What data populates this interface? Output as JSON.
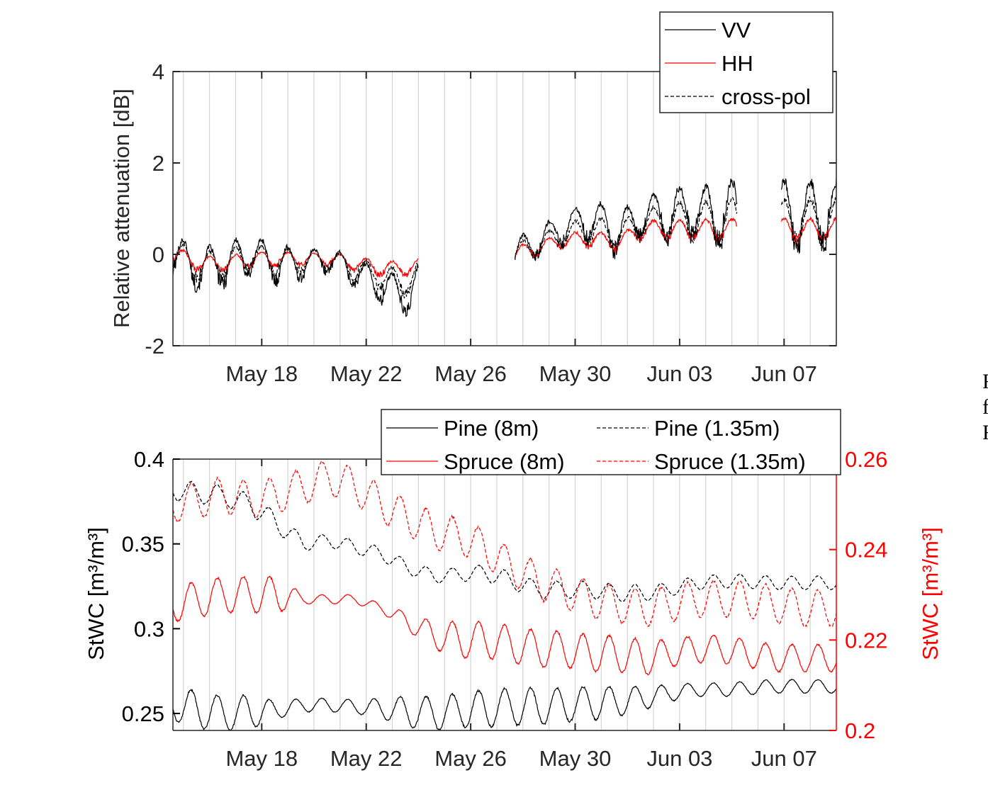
{
  "chart_data": [
    {
      "type": "line",
      "panel": "top",
      "title": "",
      "xlabel": "",
      "ylabel": "Relative attenuation [dB]",
      "ylim": [
        -2,
        4
      ],
      "yticks": [
        "-2",
        "0",
        "2",
        "4"
      ],
      "xlim_days": [
        -3.4,
        22.0
      ],
      "xticks": [
        {
          "day": 0,
          "label": "May 18"
        },
        {
          "day": 4,
          "label": "May 22"
        },
        {
          "day": 8,
          "label": "May 26"
        },
        {
          "day": 12,
          "label": "May 30"
        },
        {
          "day": 16,
          "label": "Jun 03"
        },
        {
          "day": 20,
          "label": "Jun 07"
        }
      ],
      "grid": "vertical daily lines",
      "legend": "top-right",
      "segments_days": [
        [
          -3.4,
          6.0
        ],
        [
          9.7,
          18.2
        ],
        [
          19.9,
          22.0
        ]
      ],
      "series": [
        {
          "name": "VV",
          "color": "#000000",
          "style": "solid",
          "daily_baseline": [
            0.0,
            -0.3,
            -0.2,
            0.0,
            -0.2,
            -0.2,
            -0.1,
            -0.4,
            -0.7,
            -0.9,
            -0.4,
            -0.2,
            -0.2,
            0.0,
            0.3,
            0.6,
            0.8,
            0.5,
            0.8,
            0.9,
            0.9,
            0.9,
            0.9,
            0.9,
            0.9,
            0.9
          ],
          "daily_amplitude": [
            0.9,
            0.8,
            0.9,
            0.8,
            0.8,
            0.6,
            0.5,
            0.6,
            0.7,
            0.8,
            1.0,
            0.9,
            0.6,
            0.6,
            0.6,
            0.6,
            0.8,
            0.9,
            0.7,
            1.2,
            1.0,
            1.4,
            1.4,
            1.4,
            1.4,
            1.4
          ]
        },
        {
          "name": "HH",
          "color": "#ff0000",
          "style": "solid",
          "daily_baseline": [
            0.0,
            -0.2,
            -0.2,
            -0.1,
            -0.1,
            -0.1,
            -0.1,
            -0.2,
            -0.3,
            -0.3,
            -0.2,
            -0.1,
            -0.1,
            0.0,
            0.15,
            0.3,
            0.35,
            0.25,
            0.55,
            0.55,
            0.55,
            0.55,
            0.55,
            0.55,
            0.55,
            0.55
          ],
          "daily_amplitude": [
            0.35,
            0.3,
            0.3,
            0.3,
            0.3,
            0.25,
            0.25,
            0.3,
            0.3,
            0.3,
            0.3,
            0.4,
            0.3,
            0.3,
            0.3,
            0.3,
            0.35,
            0.3,
            0.35,
            0.4,
            0.4,
            0.45,
            0.45,
            0.45,
            0.45,
            0.45
          ]
        },
        {
          "name": "cross-pol",
          "color": "#000000",
          "style": "dashed",
          "daily_baseline": [
            0.0,
            -0.25,
            -0.2,
            -0.05,
            -0.15,
            -0.15,
            -0.1,
            -0.3,
            -0.5,
            -0.6,
            -0.3,
            -0.15,
            -0.15,
            0.0,
            0.2,
            0.45,
            0.55,
            0.4,
            0.7,
            0.75,
            0.75,
            0.75,
            0.75,
            0.75,
            0.75,
            0.75
          ],
          "daily_amplitude": [
            0.6,
            0.55,
            0.6,
            0.55,
            0.55,
            0.45,
            0.4,
            0.45,
            0.5,
            0.55,
            0.65,
            0.65,
            0.45,
            0.45,
            0.45,
            0.45,
            0.55,
            0.6,
            0.5,
            0.8,
            0.7,
            0.9,
            0.9,
            0.9,
            0.9,
            0.9
          ]
        }
      ]
    },
    {
      "type": "line",
      "panel": "bottom",
      "title": "",
      "xlabel": "",
      "ylabel": "StWC [m³/m³]",
      "ylabel_right": "StWC [m³/m³]",
      "ylim": [
        0.24,
        0.4
      ],
      "ylim_right": [
        0.2,
        0.26
      ],
      "yticks": [
        "0.25",
        "0.3",
        "0.35",
        "0.4"
      ],
      "yticks_right": [
        "0.2",
        "0.22",
        "0.24",
        "0.26"
      ],
      "xlim_days": [
        -3.4,
        22.0
      ],
      "xticks": [
        {
          "day": 0,
          "label": "May 18"
        },
        {
          "day": 4,
          "label": "May 22"
        },
        {
          "day": 8,
          "label": "May 26"
        },
        {
          "day": 12,
          "label": "May 30"
        },
        {
          "day": 16,
          "label": "Jun 03"
        },
        {
          "day": 20,
          "label": "Jun 07"
        }
      ],
      "grid": "vertical daily lines",
      "legend": "top-right, two columns",
      "series": [
        {
          "name": "Pine (8m)",
          "axis": "left",
          "color": "#000000",
          "style": "solid",
          "daily_mean": [
            0.256,
            0.252,
            0.25,
            0.251,
            0.252,
            0.255,
            0.255,
            0.254,
            0.253,
            0.251,
            0.25,
            0.252,
            0.253,
            0.254,
            0.254,
            0.255,
            0.256,
            0.257,
            0.259,
            0.262,
            0.264,
            0.264,
            0.265,
            0.266,
            0.266,
            0.266,
            0.266
          ],
          "daily_amplitude": [
            0.01,
            0.011,
            0.01,
            0.01,
            0.005,
            0.004,
            0.004,
            0.004,
            0.006,
            0.009,
            0.01,
            0.01,
            0.011,
            0.011,
            0.011,
            0.01,
            0.01,
            0.009,
            0.007,
            0.005,
            0.004,
            0.004,
            0.004,
            0.004,
            0.004,
            0.004,
            0.004
          ]
        },
        {
          "name": "Pine (1.35m)",
          "axis": "left",
          "color": "#000000",
          "style": "dashed",
          "daily_mean": [
            0.382,
            0.38,
            0.378,
            0.373,
            0.362,
            0.35,
            0.352,
            0.348,
            0.344,
            0.336,
            0.331,
            0.332,
            0.333,
            0.328,
            0.323,
            0.323,
            0.323,
            0.321,
            0.321,
            0.323,
            0.327,
            0.328,
            0.328,
            0.327,
            0.327,
            0.327,
            0.327
          ],
          "daily_amplitude": [
            0.006,
            0.006,
            0.006,
            0.006,
            0.006,
            0.004,
            0.004,
            0.004,
            0.004,
            0.004,
            0.004,
            0.004,
            0.005,
            0.005,
            0.005,
            0.005,
            0.005,
            0.005,
            0.005,
            0.004,
            0.004,
            0.004,
            0.004,
            0.004,
            0.004,
            0.004,
            0.004
          ]
        },
        {
          "name": "Spruce (8m)",
          "axis": "right",
          "color": "#ff0000",
          "style": "solid",
          "daily_mean": [
            0.228,
            0.229,
            0.23,
            0.23,
            0.23,
            0.229,
            0.229,
            0.229,
            0.227,
            0.224,
            0.221,
            0.22,
            0.22,
            0.219,
            0.218,
            0.218,
            0.217,
            0.217,
            0.216,
            0.217,
            0.218,
            0.218,
            0.217,
            0.216,
            0.216,
            0.216,
            0.216
          ],
          "daily_amplitude": [
            0.004,
            0.004,
            0.004,
            0.004,
            0.004,
            0.001,
            0.001,
            0.001,
            0.001,
            0.002,
            0.003,
            0.004,
            0.004,
            0.004,
            0.004,
            0.004,
            0.004,
            0.004,
            0.004,
            0.003,
            0.003,
            0.003,
            0.003,
            0.003,
            0.003,
            0.003,
            0.003
          ]
        },
        {
          "name": "Spruce (1.35m)",
          "axis": "right",
          "color": "#ff0000",
          "style": "dashed",
          "daily_mean": [
            0.25,
            0.251,
            0.252,
            0.251,
            0.252,
            0.254,
            0.256,
            0.254,
            0.25,
            0.247,
            0.244,
            0.243,
            0.24,
            0.236,
            0.233,
            0.231,
            0.229,
            0.228,
            0.227,
            0.228,
            0.229,
            0.229,
            0.229,
            0.228,
            0.227,
            0.227,
            0.227
          ],
          "daily_amplitude": [
            0.004,
            0.004,
            0.004,
            0.004,
            0.004,
            0.004,
            0.004,
            0.004,
            0.004,
            0.004,
            0.004,
            0.004,
            0.004,
            0.004,
            0.004,
            0.004,
            0.004,
            0.004,
            0.004,
            0.004,
            0.004,
            0.004,
            0.004,
            0.004,
            0.004,
            0.004,
            0.004
          ]
        }
      ]
    }
  ],
  "side_text": [
    "F",
    "f",
    "F"
  ]
}
